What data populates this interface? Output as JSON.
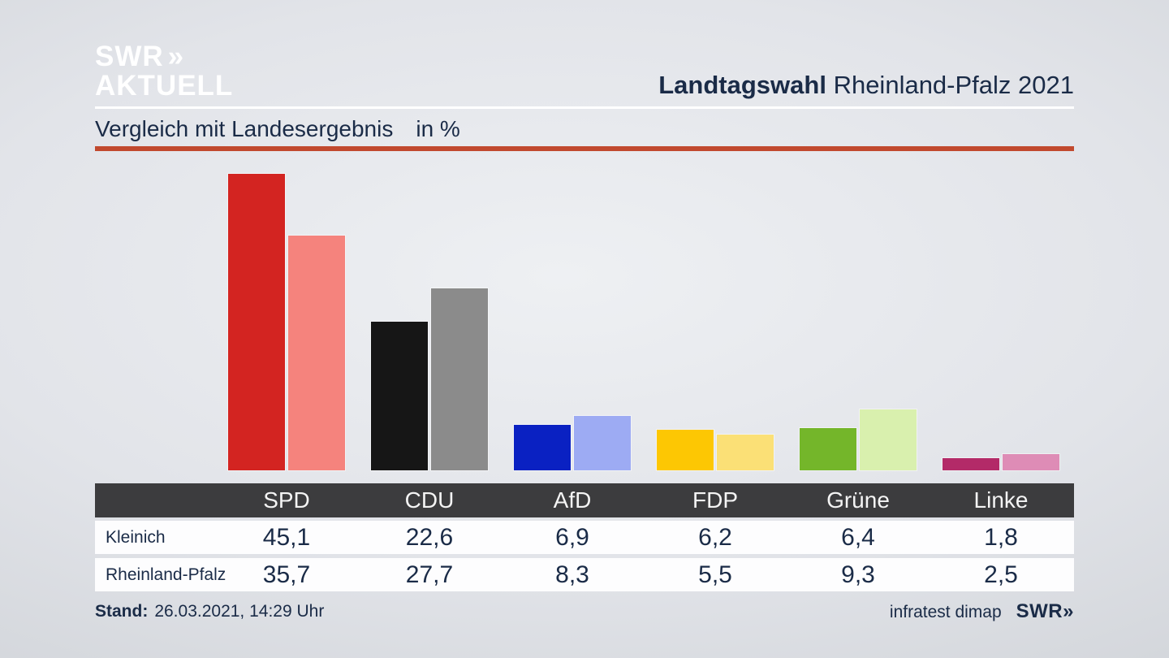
{
  "brand": {
    "logo_line1": "SWR",
    "logo_chevron_icon": "»",
    "logo_line2": "AKTUELL",
    "footer_logo": "SWR"
  },
  "header": {
    "title_bold": "Landtagswahl",
    "title_rest": " Rheinland-Pfalz 2021",
    "subtitle": "Vergleich mit Landesergebnis",
    "subtitle_unit": "in %"
  },
  "footer": {
    "stand_label": "Stand:",
    "stand_value": "26.03.2021, 14:29 Uhr",
    "agency": "infratest dimap"
  },
  "chart_data": {
    "type": "bar",
    "title": "Vergleich mit Landesergebnis in %",
    "unit": "%",
    "categories": [
      "SPD",
      "CDU",
      "AfD",
      "FDP",
      "Grüne",
      "Linke"
    ],
    "series": [
      {
        "name": "Kleinich",
        "values": [
          45.1,
          22.6,
          6.9,
          6.2,
          6.4,
          1.8
        ],
        "labels": [
          "45,1",
          "22,6",
          "6,9",
          "6,2",
          "6,4",
          "1,8"
        ],
        "colors": [
          "#d32421",
          "#161616",
          "#0a21c2",
          "#fdc703",
          "#74b62a",
          "#b32a68"
        ]
      },
      {
        "name": "Rheinland-Pfalz",
        "values": [
          35.7,
          27.7,
          8.3,
          5.5,
          9.3,
          2.5
        ],
        "labels": [
          "35,7",
          "27,7",
          "8,3",
          "5,5",
          "9,3",
          "2,5"
        ],
        "colors": [
          "#f5837d",
          "#8b8b8b",
          "#9dabf3",
          "#fbe076",
          "#d9f0ae",
          "#de8cb6"
        ]
      }
    ],
    "ylim": [
      0,
      48.5
    ],
    "grid": false,
    "legend_position": "table-row-labels",
    "value_format": "decimal-comma",
    "accent_color": "#c1492e",
    "text_color": "#1a2b47",
    "table_header_bg": "#3c3c3e"
  }
}
